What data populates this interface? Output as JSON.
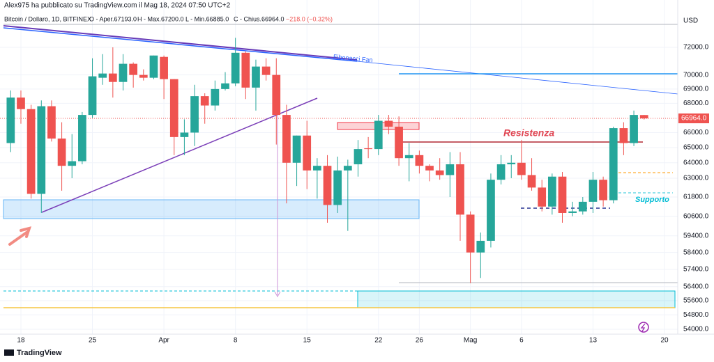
{
  "header": "Alex975 ha pubblicato su TradingView.com il Mag 18, 2024 07:50 UTC+2",
  "footer": "TradingView",
  "chart_data": {
    "type": "candlestick",
    "legend": {
      "symbol": "Bitcoin / Dollaro, 1D, BITFINEX",
      "open": "O - Aper.67193.0",
      "high": "H - Max.67200.0",
      "low": "L - Min.66885.0",
      "close": "C - Chius.66964.0",
      "change": "−218.0 (−0.32%)"
    },
    "currency": "USD",
    "annotations": [
      "Fibonacci Fan",
      "Resistenza",
      "Supporto"
    ],
    "categories": [
      null,
      "18",
      null,
      null,
      null,
      null,
      null,
      null,
      "25",
      null,
      null,
      null,
      null,
      null,
      null,
      "Apr",
      null,
      null,
      null,
      null,
      null,
      null,
      "8",
      null,
      null,
      null,
      null,
      null,
      null,
      "15",
      null,
      null,
      null,
      null,
      null,
      null,
      "22",
      null,
      null,
      null,
      "26",
      null,
      null,
      null,
      null,
      "Mag",
      null,
      null,
      null,
      null,
      "6",
      null,
      null,
      null,
      null,
      null,
      null,
      "13",
      null,
      null,
      null,
      null,
      null,
      null,
      "20",
      null
    ],
    "open": [
      65300,
      68400,
      67600,
      62000,
      67800,
      65600,
      63800,
      64100,
      67200,
      69800,
      70100,
      69500,
      70800,
      70000,
      69800,
      71300,
      69700,
      65700,
      66000,
      68500,
      67850,
      69000,
      69400,
      71600,
      69100,
      70600,
      70000,
      67200,
      64000,
      65800,
      63500,
      63800,
      61300,
      63500,
      63900,
      64950,
      64900,
      66800,
      66400,
      64300,
      64500,
      63800,
      63500,
      63200,
      63900,
      60700,
      58400,
      59100,
      62900,
      63900,
      64000,
      63200,
      62400,
      61200,
      63100,
      60800,
      60900,
      61500,
      62900,
      61600,
      66300,
      65300,
      67193,
      null,
      null,
      null
    ],
    "high": [
      68900,
      68900,
      67900,
      68200,
      68200,
      66700,
      65900,
      67400,
      71200,
      71500,
      72000,
      71500,
      70900,
      70400,
      71400,
      71400,
      69700,
      66900,
      69300,
      68700,
      69600,
      70200,
      72700,
      71700,
      71100,
      71200,
      71200,
      67900,
      65800,
      66800,
      64300,
      64500,
      64400,
      64200,
      65500,
      65700,
      67200,
      67200,
      67100,
      65300,
      64800,
      63900,
      64300,
      64700,
      64700,
      60900,
      59600,
      63300,
      64500,
      64500,
      65500,
      64300,
      62900,
      63300,
      63400,
      61500,
      61800,
      63400,
      63100,
      66400,
      66700,
      67500,
      67200,
      null,
      null,
      null
    ],
    "low": [
      64700,
      66600,
      61700,
      60800,
      65400,
      62200,
      63000,
      63900,
      67000,
      69300,
      68400,
      68900,
      69100,
      69600,
      69700,
      68300,
      64500,
      64500,
      65100,
      66600,
      67500,
      68900,
      69200,
      68300,
      67500,
      69600,
      65200,
      61400,
      62500,
      62300,
      61700,
      60200,
      60800,
      59700,
      63100,
      64300,
      64500,
      65900,
      63800,
      62800,
      63300,
      62800,
      62900,
      61800,
      59100,
      56600,
      56900,
      58700,
      62600,
      63000,
      62900,
      62200,
      60900,
      60700,
      60200,
      60600,
      60700,
      60800,
      61200,
      61400,
      64500,
      65100,
      66885,
      null,
      null,
      null
    ],
    "close": [
      68400,
      67600,
      62000,
      67800,
      65600,
      63800,
      64100,
      67200,
      69900,
      70100,
      69500,
      70800,
      70000,
      69800,
      71400,
      69700,
      65700,
      66000,
      68500,
      67850,
      69000,
      69400,
      71600,
      69100,
      70600,
      70000,
      67200,
      64000,
      65800,
      63500,
      63800,
      61300,
      63500,
      63800,
      64900,
      64900,
      66800,
      66400,
      64300,
      64500,
      63800,
      63500,
      63200,
      63900,
      60700,
      58400,
      59100,
      62900,
      63900,
      64000,
      63200,
      62400,
      61200,
      63100,
      60800,
      60900,
      61500,
      62900,
      61600,
      66300,
      65300,
      67200,
      66964,
      null,
      null,
      null
    ],
    "up_color": "#26a69a",
    "down_color": "#ef5350",
    "ylim": [
      53730,
      74390
    ],
    "log_scale": true,
    "grid": true,
    "yticks": [
      {
        "value": 72000,
        "label": "72000.0"
      },
      {
        "value": 70000,
        "label": "70000.0"
      },
      {
        "value": 69000,
        "label": "69000.0"
      },
      {
        "value": 68000,
        "label": "68000.0"
      },
      {
        "value": 66000,
        "label": "66000.0"
      },
      {
        "value": 65000,
        "label": "65000.0"
      },
      {
        "value": 64000,
        "label": "64000.0"
      },
      {
        "value": 63000,
        "label": "63000.0"
      },
      {
        "value": 61800,
        "label": "61800.0"
      },
      {
        "value": 60600,
        "label": "60600.0"
      },
      {
        "value": 59400,
        "label": "59400.0"
      },
      {
        "value": 58400,
        "label": "58400.0"
      },
      {
        "value": 57400,
        "label": "57400.0"
      },
      {
        "value": 56400,
        "label": "56400.0"
      },
      {
        "value": 55600,
        "label": "55600.0"
      },
      {
        "value": 54800,
        "label": "54800.0"
      },
      {
        "value": 54000,
        "label": "54000.0"
      }
    ],
    "price_label": {
      "value": 66964,
      "label": "66964.0"
    }
  }
}
